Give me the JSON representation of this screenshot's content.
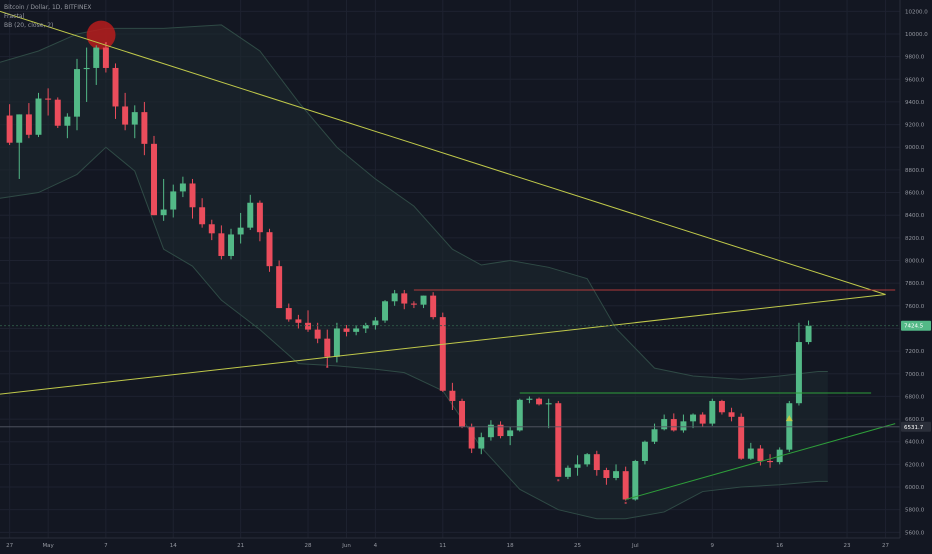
{
  "legend": {
    "symbol": "Bitcoin / Dollar, 1D, BITFINEX",
    "indicator_1": "Fractal",
    "indicator_2": "BB (20, close, 2)"
  },
  "colors": {
    "background": "#131722",
    "up": "#53b987",
    "down": "#eb4d5c",
    "band_fill": "#1d2a30",
    "band_line": "#2f4a45",
    "trendline": "#c0c94a",
    "green_line": "#2e9e3a",
    "red_line": "#b23a3a",
    "circle": "#b71c1c",
    "marker": "#c0c94a"
  },
  "chart_data": {
    "type": "candlestick",
    "title": "Bitcoin / Dollar, 1D, BITFINEX",
    "xlabel": "",
    "ylabel": "",
    "grid": true,
    "ylim": [
      5550,
      10300
    ],
    "y_ticks": [
      5600,
      5800,
      6000,
      6200,
      6400,
      6600,
      6800,
      7000,
      7200,
      7400,
      7600,
      7800,
      8000,
      8200,
      8400,
      8600,
      8800,
      9000,
      9200,
      9400,
      9600,
      9800,
      10000,
      10200
    ],
    "x_tick_labels": [
      {
        "label": "27",
        "day": 0
      },
      {
        "label": "May",
        "day": 4
      },
      {
        "label": "7",
        "day": 10
      },
      {
        "label": "14",
        "day": 17
      },
      {
        "label": "21",
        "day": 24
      },
      {
        "label": "28",
        "day": 31
      },
      {
        "label": "Jun",
        "day": 35
      },
      {
        "label": "4",
        "day": 38
      },
      {
        "label": "11",
        "day": 45
      },
      {
        "label": "18",
        "day": 52
      },
      {
        "label": "25",
        "day": 59
      },
      {
        "label": "Jul",
        "day": 65
      },
      {
        "label": "9",
        "day": 73
      },
      {
        "label": "16",
        "day": 80
      },
      {
        "label": "23",
        "day": 87
      },
      {
        "label": "27",
        "day": 91
      }
    ],
    "x_range_days": [
      -1,
      92.5
    ],
    "price_labels": [
      {
        "text": "7424.5",
        "value": 7424.5,
        "color": "#53b987"
      },
      {
        "text": "6531.7",
        "value": 6531.7,
        "color": "#2a2e39"
      }
    ],
    "candles": [
      [
        9280,
        9380,
        9020,
        9040
      ],
      [
        9040,
        9290,
        8720,
        9290
      ],
      [
        9290,
        9390,
        9080,
        9110
      ],
      [
        9110,
        9480,
        9090,
        9430
      ],
      [
        9430,
        9520,
        9280,
        9420
      ],
      [
        9420,
        9440,
        9170,
        9190
      ],
      [
        9190,
        9300,
        9080,
        9270
      ],
      [
        9270,
        9780,
        9150,
        9690
      ],
      [
        9690,
        9880,
        9400,
        9700
      ],
      [
        9700,
        9900,
        9550,
        9880
      ],
      [
        9880,
        9920,
        9660,
        9700
      ],
      [
        9700,
        9740,
        9250,
        9360
      ],
      [
        9360,
        9480,
        9150,
        9200
      ],
      [
        9200,
        9370,
        9080,
        9310
      ],
      [
        9310,
        9400,
        8930,
        9030
      ],
      [
        9030,
        9100,
        8400,
        8400
      ],
      [
        8400,
        8720,
        8350,
        8450
      ],
      [
        8450,
        8670,
        8380,
        8610
      ],
      [
        8610,
        8740,
        8560,
        8680
      ],
      [
        8680,
        8720,
        8370,
        8470
      ],
      [
        8470,
        8550,
        8290,
        8320
      ],
      [
        8320,
        8360,
        8180,
        8240
      ],
      [
        8240,
        8310,
        8010,
        8040
      ],
      [
        8040,
        8280,
        8010,
        8230
      ],
      [
        8230,
        8420,
        8150,
        8290
      ],
      [
        8290,
        8580,
        8270,
        8510
      ],
      [
        8510,
        8530,
        8170,
        8250
      ],
      [
        8250,
        8280,
        7900,
        7950
      ],
      [
        7950,
        8000,
        7580,
        7580
      ],
      [
        7580,
        7620,
        7460,
        7480
      ],
      [
        7480,
        7520,
        7400,
        7450
      ],
      [
        7450,
        7560,
        7370,
        7390
      ],
      [
        7390,
        7450,
        7270,
        7310
      ],
      [
        7310,
        7390,
        7060,
        7150
      ],
      [
        7150,
        7450,
        7100,
        7400
      ],
      [
        7400,
        7430,
        7330,
        7370
      ],
      [
        7370,
        7430,
        7340,
        7400
      ],
      [
        7400,
        7450,
        7360,
        7430
      ],
      [
        7430,
        7500,
        7390,
        7470
      ],
      [
        7470,
        7650,
        7450,
        7640
      ],
      [
        7640,
        7740,
        7600,
        7710
      ],
      [
        7710,
        7740,
        7570,
        7620
      ],
      [
        7620,
        7640,
        7580,
        7610
      ],
      [
        7610,
        7690,
        7580,
        7690
      ],
      [
        7690,
        7720,
        7480,
        7500
      ],
      [
        7500,
        7540,
        6840,
        6850
      ],
      [
        6850,
        6920,
        6680,
        6760
      ],
      [
        6760,
        6780,
        6520,
        6530
      ],
      [
        6530,
        6560,
        6300,
        6340
      ],
      [
        6340,
        6480,
        6290,
        6440
      ],
      [
        6440,
        6590,
        6410,
        6550
      ],
      [
        6550,
        6580,
        6430,
        6450
      ],
      [
        6450,
        6530,
        6370,
        6500
      ],
      [
        6500,
        6780,
        6490,
        6770
      ],
      [
        6770,
        6800,
        6740,
        6780
      ],
      [
        6780,
        6790,
        6720,
        6730
      ],
      [
        6730,
        6780,
        6520,
        6740
      ],
      [
        6740,
        6760,
        6090,
        6090
      ],
      [
        6090,
        6190,
        6070,
        6170
      ],
      [
        6170,
        6280,
        6100,
        6200
      ],
      [
        6200,
        6300,
        6180,
        6290
      ],
      [
        6290,
        6320,
        6100,
        6150
      ],
      [
        6150,
        6170,
        6020,
        6080
      ],
      [
        6080,
        6200,
        6060,
        6140
      ],
      [
        6140,
        6180,
        5880,
        5890
      ],
      [
        5890,
        6240,
        5880,
        6230
      ],
      [
        6230,
        6410,
        6200,
        6400
      ],
      [
        6400,
        6560,
        6380,
        6510
      ],
      [
        6510,
        6640,
        6500,
        6600
      ],
      [
        6600,
        6650,
        6490,
        6500
      ],
      [
        6500,
        6640,
        6480,
        6580
      ],
      [
        6580,
        6650,
        6520,
        6640
      ],
      [
        6640,
        6660,
        6530,
        6560
      ],
      [
        6560,
        6780,
        6540,
        6760
      ],
      [
        6760,
        6770,
        6640,
        6660
      ],
      [
        6660,
        6700,
        6580,
        6620
      ],
      [
        6620,
        6650,
        6240,
        6250
      ],
      [
        6250,
        6390,
        6240,
        6340
      ],
      [
        6340,
        6370,
        6190,
        6230
      ],
      [
        6230,
        6290,
        6170,
        6220
      ],
      [
        6220,
        6350,
        6200,
        6330
      ],
      [
        6330,
        6760,
        6310,
        6740
      ],
      [
        6740,
        7450,
        6720,
        7280
      ],
      [
        7280,
        7470,
        7260,
        7424.5
      ]
    ],
    "bollinger": {
      "upper": [
        [
          -1,
          9750
        ],
        [
          3,
          9850
        ],
        [
          7,
          10000
        ],
        [
          10,
          10050
        ],
        [
          16,
          10050
        ],
        [
          22,
          10080
        ],
        [
          26,
          9850
        ],
        [
          30,
          9400
        ],
        [
          34,
          9000
        ],
        [
          38,
          8720
        ],
        [
          42,
          8480
        ],
        [
          46,
          8100
        ],
        [
          49,
          7960
        ],
        [
          52,
          8000
        ],
        [
          56,
          7940
        ],
        [
          60,
          7840
        ],
        [
          63,
          7400
        ],
        [
          67,
          7050
        ],
        [
          71,
          6980
        ],
        [
          76,
          6950
        ],
        [
          80,
          6980
        ],
        [
          84,
          7020
        ],
        [
          85,
          7020
        ]
      ],
      "lower": [
        [
          -1,
          8550
        ],
        [
          3,
          8600
        ],
        [
          7,
          8760
        ],
        [
          10,
          9000
        ],
        [
          13,
          8790
        ],
        [
          16,
          8100
        ],
        [
          19,
          7950
        ],
        [
          22,
          7650
        ],
        [
          26,
          7390
        ],
        [
          30,
          7090
        ],
        [
          34,
          7070
        ],
        [
          38,
          7040
        ],
        [
          41,
          7010
        ],
        [
          45,
          6850
        ],
        [
          49,
          6350
        ],
        [
          53,
          5980
        ],
        [
          57,
          5800
        ],
        [
          61,
          5720
        ],
        [
          64,
          5720
        ],
        [
          68,
          5780
        ],
        [
          72,
          5960
        ],
        [
          76,
          6000
        ],
        [
          80,
          6020
        ],
        [
          84,
          6050
        ],
        [
          85,
          6050
        ]
      ]
    },
    "fractals": [
      {
        "day": 10,
        "value": 9920,
        "type": "up"
      },
      {
        "day": 33,
        "value": 7060,
        "type": "down"
      },
      {
        "day": 57,
        "value": 6060,
        "type": "down"
      },
      {
        "day": 64,
        "value": 5860,
        "type": "down"
      }
    ],
    "lines": [
      {
        "color": "#c0c94a",
        "from": [
          -1,
          10200
        ],
        "to": [
          91,
          7700
        ]
      },
      {
        "color": "#c0c94a",
        "from": [
          -1,
          6820
        ],
        "to": [
          91,
          7700
        ]
      },
      {
        "color": "#2e9e3a",
        "from": [
          53,
          6830
        ],
        "to": [
          89.5,
          6830
        ]
      },
      {
        "color": "#2e9e3a",
        "from": [
          64,
          5890
        ],
        "to": [
          92,
          6560
        ]
      },
      {
        "color": "#b23a3a",
        "from": [
          42,
          7740
        ],
        "to": [
          92,
          7740
        ]
      }
    ],
    "circle": {
      "day": 9.5,
      "value": 9990,
      "radius_days": 1.5
    },
    "marker": {
      "day": 81,
      "value": 6600,
      "shape": "triangle-up"
    }
  }
}
